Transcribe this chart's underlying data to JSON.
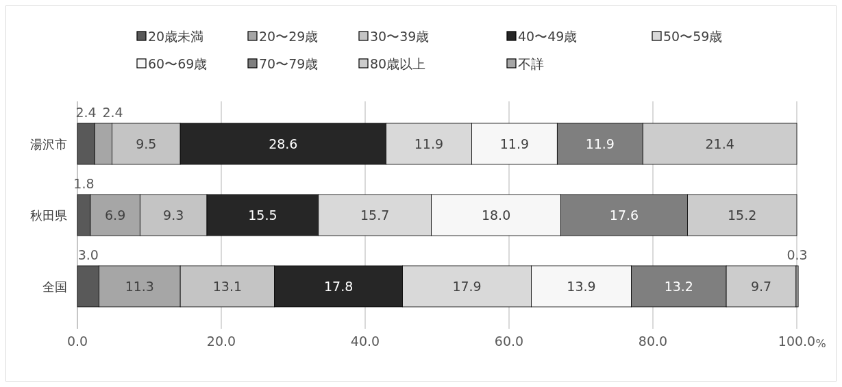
{
  "chart_data": {
    "type": "bar",
    "orientation": "horizontal",
    "stacked": true,
    "categories": [
      "湯沢市",
      "秋田県",
      "全国"
    ],
    "series": [
      {
        "name": "20歳未満",
        "color": "#595959",
        "values": [
          2.4,
          1.8,
          3.0
        ],
        "value_labels": [
          "2.4",
          "1.8",
          "3.0"
        ]
      },
      {
        "name": "20〜29歳",
        "color": "#a6a6a6",
        "values": [
          2.4,
          6.9,
          11.3
        ],
        "value_labels": [
          "2.4",
          "6.9",
          "11.3"
        ]
      },
      {
        "name": "30〜39歳",
        "color": "#c4c4c4",
        "values": [
          9.5,
          9.3,
          13.1
        ],
        "value_labels": [
          "9.5",
          "9.3",
          "13.1"
        ]
      },
      {
        "name": "40〜49歳",
        "color": "#262626",
        "values": [
          28.6,
          15.5,
          17.8
        ],
        "value_labels": [
          "28.6",
          "15.5",
          "17.8"
        ]
      },
      {
        "name": "50〜59歳",
        "color": "#d9d9d9",
        "values": [
          11.9,
          15.7,
          17.9
        ],
        "value_labels": [
          "11.9",
          "15.7",
          "17.9"
        ]
      },
      {
        "name": "60〜69歳",
        "color": "#f7f7f7",
        "values": [
          11.9,
          18.0,
          13.9
        ],
        "value_labels": [
          "11.9",
          "18.0",
          "13.9"
        ]
      },
      {
        "name": "70〜79歳",
        "color": "#7f7f7f",
        "values": [
          11.9,
          17.6,
          13.2
        ],
        "value_labels": [
          "11.9",
          "17.6",
          "13.2"
        ]
      },
      {
        "name": "80歳以上",
        "color": "#cccccc",
        "values": [
          21.4,
          15.2,
          9.7
        ],
        "value_labels": [
          "21.4",
          "15.2",
          "9.7"
        ]
      },
      {
        "name": "不詳",
        "color": "#a6a6a6",
        "values": [
          null,
          null,
          0.3
        ],
        "value_labels": [
          null,
          null,
          "0.3"
        ]
      }
    ],
    "xlim": [
      0,
      100
    ],
    "xticks": [
      {
        "value": 0,
        "label": "0.0"
      },
      {
        "value": 20,
        "label": "20.0"
      },
      {
        "value": 40,
        "label": "40.0"
      },
      {
        "value": 60,
        "label": "60.0"
      },
      {
        "value": 80,
        "label": "80.0"
      },
      {
        "value": 100,
        "label": "100.0"
      }
    ],
    "xlabel": "%",
    "grid": "x",
    "legend": "top"
  }
}
